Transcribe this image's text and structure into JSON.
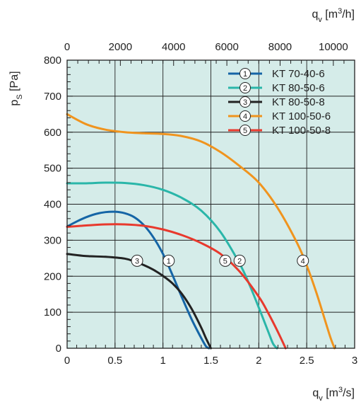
{
  "chart_data": {
    "type": "line",
    "title": "",
    "xlabel": "q_v [m3/s]",
    "ylabel": "p_s [Pa]",
    "x2label": "q_v [m3/h]",
    "axis_text": {
      "x_main": "q",
      "x_sub": "v",
      "x_unit_open": " [m",
      "x_exp": "3",
      "x_unit_close": "/s]",
      "x2_main": "q",
      "x2_sub": "v",
      "x2_unit_open": " [m",
      "x2_exp": "3",
      "x2_unit_close": "/h]",
      "y_main": "p",
      "y_sub": "S",
      "y_unit": " [Pa]"
    },
    "xlim": [
      0,
      3
    ],
    "ylim": [
      0,
      800
    ],
    "x2lim": [
      0,
      10800
    ],
    "x_ticks": [
      "0",
      "0.5",
      "1",
      "1.5",
      "2",
      "2.5",
      "3"
    ],
    "x_tick_values": [
      0,
      0.5,
      1,
      1.5,
      2,
      2.5,
      3
    ],
    "y_ticks": [
      "0",
      "100",
      "200",
      "300",
      "400",
      "500",
      "600",
      "700",
      "800"
    ],
    "y_tick_values": [
      0,
      100,
      200,
      300,
      400,
      500,
      600,
      700,
      800
    ],
    "x2_ticks": [
      "0",
      "2000",
      "4000",
      "6000",
      "8000",
      "10000"
    ],
    "x2_tick_values": [
      0,
      2000,
      4000,
      6000,
      8000,
      10000
    ],
    "grid": true,
    "background": "#d5ece9",
    "legend_position": "top-right",
    "series": [
      {
        "id": "1",
        "name": "KT 70-40-6",
        "color": "#1565a6",
        "x": [
          0,
          0.1,
          0.2,
          0.3,
          0.4,
          0.5,
          0.6,
          0.7,
          0.8,
          0.9,
          1.0,
          1.1,
          1.2,
          1.3,
          1.4,
          1.45,
          1.48
        ],
        "y": [
          338,
          352,
          364,
          373,
          378,
          379,
          375,
          364,
          342,
          308,
          262,
          203,
          140,
          80,
          28,
          5,
          0
        ],
        "marker_x": 1.06,
        "marker_y": 243
      },
      {
        "id": "2",
        "name": "KT 80-50-6",
        "color": "#2ab6a9",
        "x": [
          0,
          0.2,
          0.4,
          0.6,
          0.8,
          1.0,
          1.2,
          1.4,
          1.6,
          1.8,
          1.9,
          2.0,
          2.1,
          2.15,
          2.19
        ],
        "y": [
          458,
          458,
          460,
          459,
          453,
          440,
          417,
          382,
          323,
          235,
          178,
          113,
          45,
          12,
          0
        ],
        "marker_x": 1.8,
        "marker_y": 243
      },
      {
        "id": "3",
        "name": "KT 80-50-8",
        "color": "#222222",
        "x": [
          0,
          0.2,
          0.4,
          0.6,
          0.7,
          0.8,
          0.9,
          1.0,
          1.1,
          1.2,
          1.3,
          1.4,
          1.45,
          1.5
        ],
        "y": [
          262,
          256,
          254,
          249,
          241,
          231,
          218,
          201,
          180,
          150,
          109,
          57,
          27,
          0
        ],
        "marker_x": 0.73,
        "marker_y": 243
      },
      {
        "id": "4",
        "name": "KT 100-50-6",
        "color": "#f0941e",
        "x": [
          0,
          0.2,
          0.4,
          0.6,
          0.8,
          1.0,
          1.2,
          1.4,
          1.6,
          1.8,
          2.0,
          2.2,
          2.4,
          2.5,
          2.6,
          2.7,
          2.75,
          2.79
        ],
        "y": [
          650,
          622,
          607,
          600,
          597,
          595,
          589,
          574,
          545,
          506,
          460,
          388,
          292,
          230,
          155,
          70,
          28,
          0
        ],
        "marker_x": 2.46,
        "marker_y": 243
      },
      {
        "id": "5",
        "name": "KT 100-50-8",
        "color": "#e8392d",
        "x": [
          0,
          0.2,
          0.4,
          0.6,
          0.8,
          1.0,
          1.2,
          1.4,
          1.6,
          1.8,
          2.0,
          2.1,
          2.2,
          2.28
        ],
        "y": [
          337,
          341,
          344,
          344,
          340,
          330,
          314,
          292,
          262,
          213,
          143,
          97,
          45,
          0
        ],
        "marker_x": 1.65,
        "marker_y": 243
      }
    ]
  }
}
